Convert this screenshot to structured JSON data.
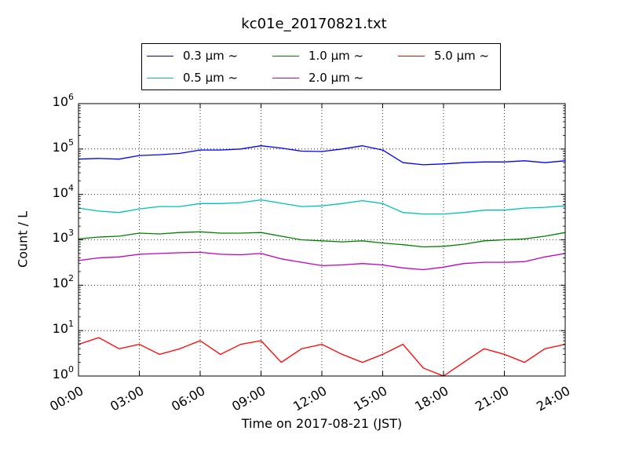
{
  "chart_data": {
    "type": "line",
    "title": "kc01e_20170821.txt",
    "xlabel": "Time on 2017-08-21 (JST)",
    "ylabel": "Count / L",
    "yscale": "log",
    "ylim": [
      1,
      1000000
    ],
    "xlim": [
      "00:00",
      "24:00"
    ],
    "grid": true,
    "legend_placement": "top-center",
    "x_tick_labels": [
      "00:00",
      "03:00",
      "06:00",
      "09:00",
      "12:00",
      "15:00",
      "18:00",
      "21:00",
      "24:00"
    ],
    "y_tick_labels": [
      {
        "base": "10",
        "exp": "0"
      },
      {
        "base": "10",
        "exp": "1"
      },
      {
        "base": "10",
        "exp": "2"
      },
      {
        "base": "10",
        "exp": "3"
      },
      {
        "base": "10",
        "exp": "4"
      },
      {
        "base": "10",
        "exp": "5"
      },
      {
        "base": "10",
        "exp": "6"
      }
    ],
    "x": [
      "00:00",
      "01:00",
      "02:00",
      "03:00",
      "04:00",
      "05:00",
      "06:00",
      "07:00",
      "08:00",
      "09:00",
      "10:00",
      "11:00",
      "12:00",
      "13:00",
      "14:00",
      "15:00",
      "16:00",
      "17:00",
      "18:00",
      "19:00",
      "20:00",
      "21:00",
      "22:00",
      "23:00",
      "24:00"
    ],
    "series": [
      {
        "name": "0.3 μm ~",
        "color": "#0000ff",
        "values": [
          60000,
          62000,
          60000,
          72000,
          75000,
          80000,
          95000,
          95000,
          100000,
          118000,
          105000,
          90000,
          88000,
          100000,
          118000,
          95000,
          50000,
          45000,
          47000,
          50000,
          52000,
          52000,
          55000,
          50000,
          55000
        ]
      },
      {
        "name": "0.5 μm ~",
        "color": "#00bfbf",
        "values": [
          5000,
          4300,
          4000,
          4800,
          5400,
          5400,
          6300,
          6300,
          6600,
          7600,
          6400,
          5400,
          5600,
          6300,
          7300,
          6300,
          4000,
          3700,
          3700,
          4000,
          4500,
          4500,
          5000,
          5200,
          5600
        ]
      },
      {
        "name": "1.0 μm ~",
        "color": "#008000",
        "values": [
          1050,
          1150,
          1200,
          1400,
          1350,
          1450,
          1500,
          1400,
          1400,
          1450,
          1200,
          1000,
          950,
          900,
          950,
          850,
          780,
          700,
          720,
          800,
          950,
          1000,
          1050,
          1200,
          1450
        ]
      },
      {
        "name": "2.0 μm ~",
        "color": "#bf00bf",
        "values": [
          350,
          400,
          420,
          480,
          500,
          520,
          530,
          480,
          470,
          500,
          380,
          320,
          270,
          280,
          300,
          280,
          240,
          220,
          250,
          300,
          320,
          320,
          330,
          420,
          500
        ]
      },
      {
        "name": "5.0 μm ~",
        "color": "#ff0000",
        "values": [
          5,
          7,
          4,
          5,
          3,
          4,
          6,
          3,
          5,
          6,
          2,
          4,
          5,
          3,
          2,
          3,
          5,
          1.5,
          1,
          2,
          4,
          3,
          2,
          4,
          5
        ]
      }
    ]
  }
}
